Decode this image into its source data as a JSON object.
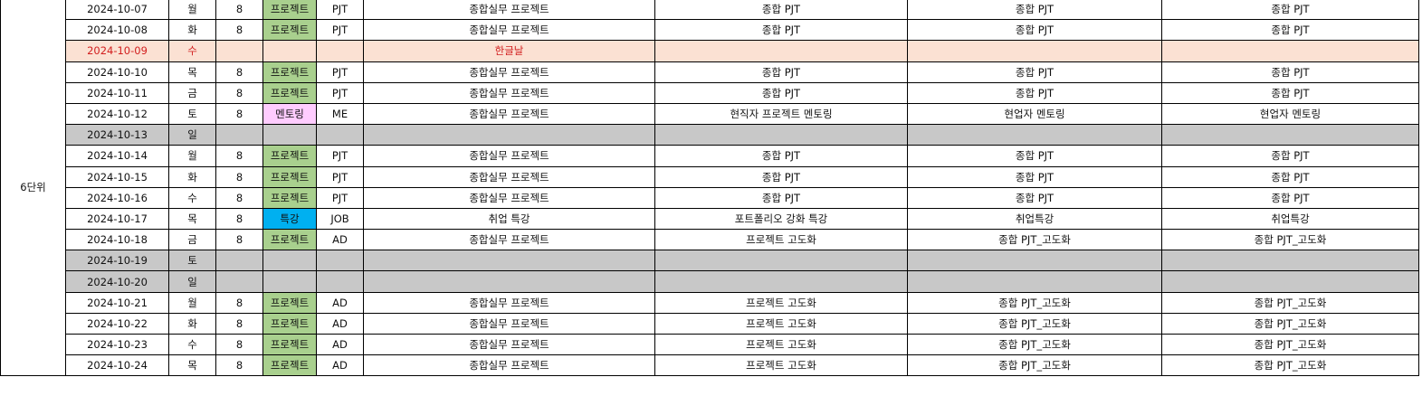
{
  "unit_label": "6단위",
  "rows": [
    {
      "date": "2024-10-07",
      "dow": "월",
      "hours": "8",
      "type": "프로젝트",
      "type_style": "project",
      "code": "PJT",
      "t1": "종합실무 프로젝트",
      "t2": "종합 PJT",
      "t3": "종합 PJT",
      "t4": "종합 PJT",
      "row_style": "normal"
    },
    {
      "date": "2024-10-08",
      "dow": "화",
      "hours": "8",
      "type": "프로젝트",
      "type_style": "project",
      "code": "PJT",
      "t1": "종합실무 프로젝트",
      "t2": "종합 PJT",
      "t3": "종합 PJT",
      "t4": "종합 PJT",
      "row_style": "normal"
    },
    {
      "date": "2024-10-09",
      "dow": "수",
      "hours": "",
      "type": "",
      "type_style": "none",
      "code": "",
      "t1": "한글날",
      "t2": "",
      "t3": "",
      "t4": "",
      "row_style": "holiday"
    },
    {
      "date": "2024-10-10",
      "dow": "목",
      "hours": "8",
      "type": "프로젝트",
      "type_style": "project",
      "code": "PJT",
      "t1": "종합실무 프로젝트",
      "t2": "종합 PJT",
      "t3": "종합 PJT",
      "t4": "종합 PJT",
      "row_style": "normal"
    },
    {
      "date": "2024-10-11",
      "dow": "금",
      "hours": "8",
      "type": "프로젝트",
      "type_style": "project",
      "code": "PJT",
      "t1": "종합실무 프로젝트",
      "t2": "종합 PJT",
      "t3": "종합 PJT",
      "t4": "종합 PJT",
      "row_style": "normal"
    },
    {
      "date": "2024-10-12",
      "dow": "토",
      "hours": "8",
      "type": "멘토링",
      "type_style": "mentoring",
      "code": "ME",
      "t1": "종합실무 프로젝트",
      "t2": "현직자 프로젝트 멘토링",
      "t3": "현업자 멘토링",
      "t4": "현업자 멘토링",
      "row_style": "normal"
    },
    {
      "date": "2024-10-13",
      "dow": "일",
      "hours": "",
      "type": "",
      "type_style": "none",
      "code": "",
      "t1": "",
      "t2": "",
      "t3": "",
      "t4": "",
      "row_style": "weekend"
    },
    {
      "date": "2024-10-14",
      "dow": "월",
      "hours": "8",
      "type": "프로젝트",
      "type_style": "project",
      "code": "PJT",
      "t1": "종합실무 프로젝트",
      "t2": "종합 PJT",
      "t3": "종합 PJT",
      "t4": "종합 PJT",
      "row_style": "normal"
    },
    {
      "date": "2024-10-15",
      "dow": "화",
      "hours": "8",
      "type": "프로젝트",
      "type_style": "project",
      "code": "PJT",
      "t1": "종합실무 프로젝트",
      "t2": "종합 PJT",
      "t3": "종합 PJT",
      "t4": "종합 PJT",
      "row_style": "normal"
    },
    {
      "date": "2024-10-16",
      "dow": "수",
      "hours": "8",
      "type": "프로젝트",
      "type_style": "project",
      "code": "PJT",
      "t1": "종합실무 프로젝트",
      "t2": "종합 PJT",
      "t3": "종합 PJT",
      "t4": "종합 PJT",
      "row_style": "normal"
    },
    {
      "date": "2024-10-17",
      "dow": "목",
      "hours": "8",
      "type": "특강",
      "type_style": "lecture",
      "code": "JOB",
      "t1": "취업 특강",
      "t2": "포트폴리오 강화 특강",
      "t3": "취업특강",
      "t4": "취업특강",
      "row_style": "normal"
    },
    {
      "date": "2024-10-18",
      "dow": "금",
      "hours": "8",
      "type": "프로젝트",
      "type_style": "project",
      "code": "AD",
      "t1": "종합실무 프로젝트",
      "t2": "프로젝트 고도화",
      "t3": "종합 PJT_고도화",
      "t4": "종합 PJT_고도화",
      "row_style": "normal"
    },
    {
      "date": "2024-10-19",
      "dow": "토",
      "hours": "",
      "type": "",
      "type_style": "none",
      "code": "",
      "t1": "",
      "t2": "",
      "t3": "",
      "t4": "",
      "row_style": "weekend"
    },
    {
      "date": "2024-10-20",
      "dow": "일",
      "hours": "",
      "type": "",
      "type_style": "none",
      "code": "",
      "t1": "",
      "t2": "",
      "t3": "",
      "t4": "",
      "row_style": "weekend"
    },
    {
      "date": "2024-10-21",
      "dow": "월",
      "hours": "8",
      "type": "프로젝트",
      "type_style": "project",
      "code": "AD",
      "t1": "종합실무 프로젝트",
      "t2": "프로젝트 고도화",
      "t3": "종합 PJT_고도화",
      "t4": "종합 PJT_고도화",
      "row_style": "normal"
    },
    {
      "date": "2024-10-22",
      "dow": "화",
      "hours": "8",
      "type": "프로젝트",
      "type_style": "project",
      "code": "AD",
      "t1": "종합실무 프로젝트",
      "t2": "프로젝트 고도화",
      "t3": "종합 PJT_고도화",
      "t4": "종합 PJT_고도화",
      "row_style": "normal"
    },
    {
      "date": "2024-10-23",
      "dow": "수",
      "hours": "8",
      "type": "프로젝트",
      "type_style": "project",
      "code": "AD",
      "t1": "종합실무 프로젝트",
      "t2": "프로젝트 고도화",
      "t3": "종합 PJT_고도화",
      "t4": "종합 PJT_고도화",
      "row_style": "normal"
    },
    {
      "date": "2024-10-24",
      "dow": "목",
      "hours": "8",
      "type": "프로젝트",
      "type_style": "project",
      "code": "AD",
      "t1": "종합실무 프로젝트",
      "t2": "프로젝트 고도화",
      "t3": "종합 PJT_고도화",
      "t4": "종합 PJT_고도화",
      "row_style": "normal"
    }
  ]
}
